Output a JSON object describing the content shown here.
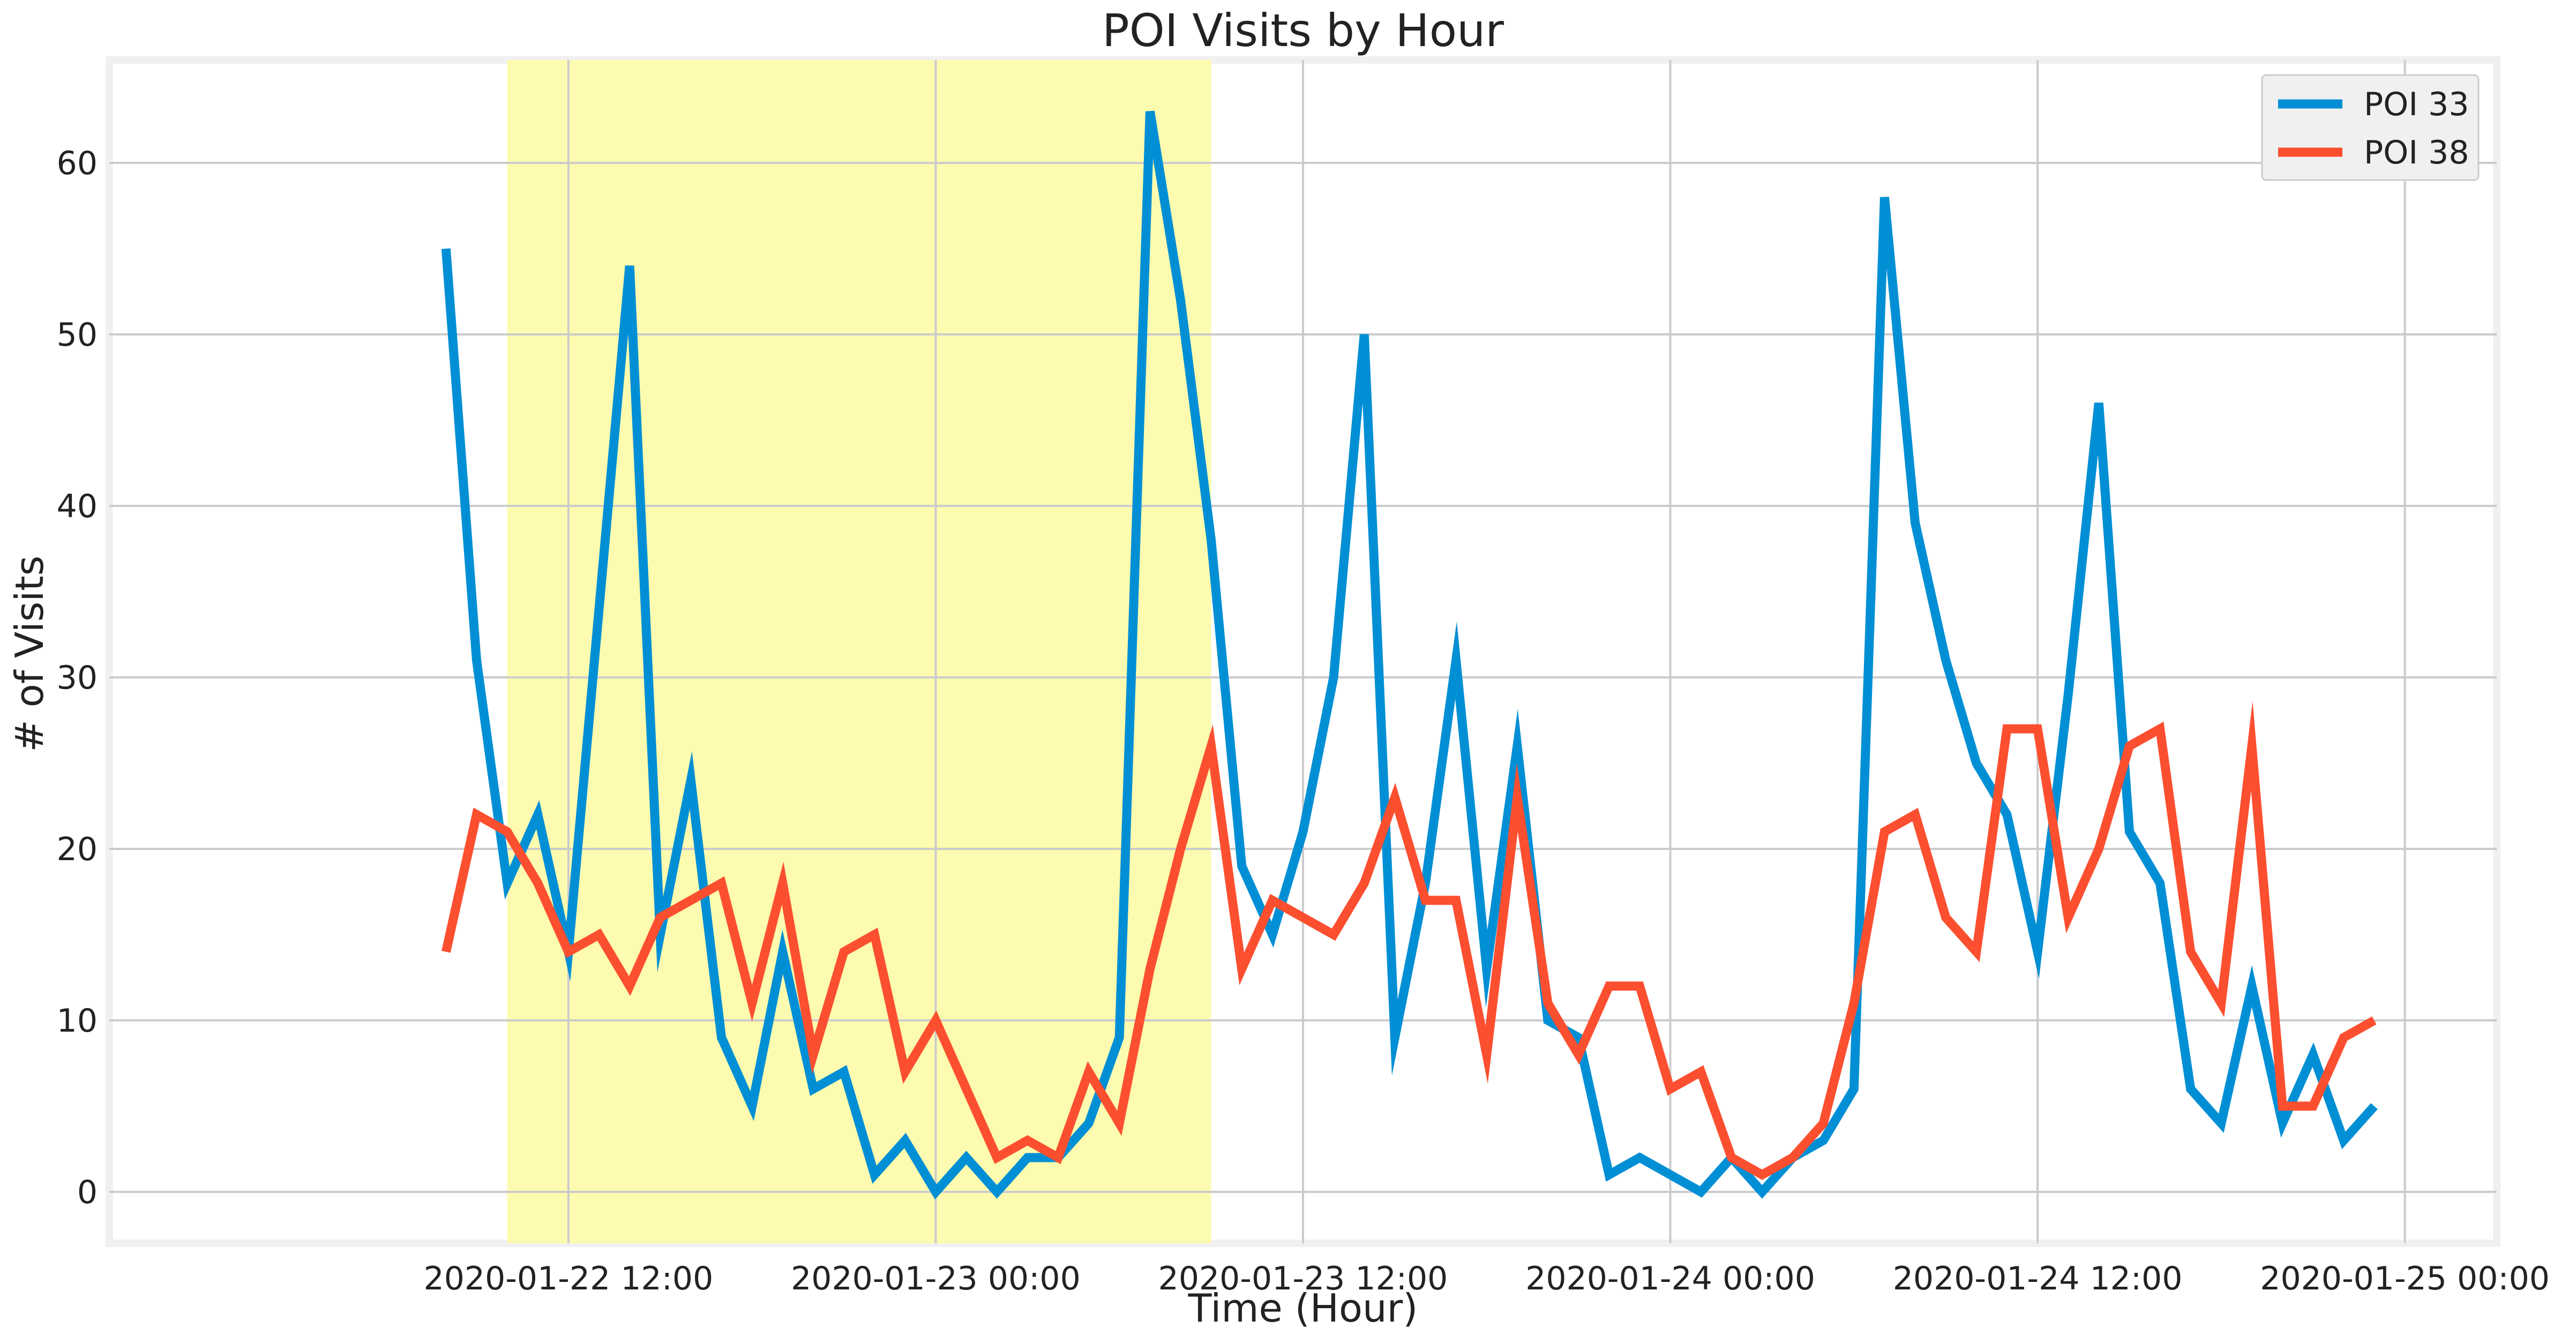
{
  "chart_data": {
    "type": "line",
    "title": "POI Visits by Hour",
    "xlabel": "Time (Hour)",
    "ylabel": "# of Visits",
    "x_unit": "hour",
    "xlim": [
      "2020-01-21 21:00",
      "2020-01-25 03:00"
    ],
    "ylim": [
      -3,
      66
    ],
    "x_ticks": [
      "2020-01-22 12:00",
      "2020-01-23 00:00",
      "2020-01-23 12:00",
      "2020-01-24 00:00",
      "2020-01-24 12:00",
      "2020-01-25 00:00"
    ],
    "y_ticks": [
      0,
      10,
      20,
      30,
      40,
      50,
      60
    ],
    "grid": true,
    "legend_position": "top-right",
    "highlight_span": {
      "from": "2020-01-22 10:00",
      "to": "2020-01-23 09:00",
      "color": "#fdfbaf"
    },
    "series": [
      {
        "name": "POI 33",
        "color": "#008fd5",
        "points": [
          [
            "2020-01-22 08:00",
            55
          ],
          [
            "2020-01-22 09:00",
            31
          ],
          [
            "2020-01-22 10:00",
            18
          ],
          [
            "2020-01-22 11:00",
            22
          ],
          [
            "2020-01-22 12:00",
            14
          ],
          [
            "2020-01-22 13:00",
            34
          ],
          [
            "2020-01-22 14:00",
            54
          ],
          [
            "2020-01-22 15:00",
            15
          ],
          [
            "2020-01-22 16:00",
            24
          ],
          [
            "2020-01-22 17:00",
            9
          ],
          [
            "2020-01-22 18:00",
            5
          ],
          [
            "2020-01-22 19:00",
            14
          ],
          [
            "2020-01-22 20:00",
            6
          ],
          [
            "2020-01-22 21:00",
            7
          ],
          [
            "2020-01-22 22:00",
            1
          ],
          [
            "2020-01-22 23:00",
            3
          ],
          [
            "2020-01-23 00:00",
            0
          ],
          [
            "2020-01-23 01:00",
            2
          ],
          [
            "2020-01-23 02:00",
            0
          ],
          [
            "2020-01-23 03:00",
            2
          ],
          [
            "2020-01-23 04:00",
            2
          ],
          [
            "2020-01-23 05:00",
            4
          ],
          [
            "2020-01-23 06:00",
            9
          ],
          [
            "2020-01-23 07:00",
            63
          ],
          [
            "2020-01-23 08:00",
            52
          ],
          [
            "2020-01-23 09:00",
            38
          ],
          [
            "2020-01-23 10:00",
            19
          ],
          [
            "2020-01-23 11:00",
            15
          ],
          [
            "2020-01-23 12:00",
            21
          ],
          [
            "2020-01-23 13:00",
            30
          ],
          [
            "2020-01-23 14:00",
            50
          ],
          [
            "2020-01-23 15:00",
            9
          ],
          [
            "2020-01-23 16:00",
            18
          ],
          [
            "2020-01-23 17:00",
            31
          ],
          [
            "2020-01-23 18:00",
            13
          ],
          [
            "2020-01-23 19:00",
            26
          ],
          [
            "2020-01-23 20:00",
            10
          ],
          [
            "2020-01-23 21:00",
            9
          ],
          [
            "2020-01-23 22:00",
            1
          ],
          [
            "2020-01-23 23:00",
            2
          ],
          [
            "2020-01-24 00:00",
            1
          ],
          [
            "2020-01-24 01:00",
            0
          ],
          [
            "2020-01-24 02:00",
            2
          ],
          [
            "2020-01-24 03:00",
            0
          ],
          [
            "2020-01-24 04:00",
            2
          ],
          [
            "2020-01-24 05:00",
            3
          ],
          [
            "2020-01-24 06:00",
            6
          ],
          [
            "2020-01-24 07:00",
            58
          ],
          [
            "2020-01-24 08:00",
            39
          ],
          [
            "2020-01-24 09:00",
            31
          ],
          [
            "2020-01-24 10:00",
            25
          ],
          [
            "2020-01-24 11:00",
            22
          ],
          [
            "2020-01-24 12:00",
            14
          ],
          [
            "2020-01-24 13:00",
            29
          ],
          [
            "2020-01-24 14:00",
            46
          ],
          [
            "2020-01-24 15:00",
            21
          ],
          [
            "2020-01-24 16:00",
            18
          ],
          [
            "2020-01-24 17:00",
            6
          ],
          [
            "2020-01-24 18:00",
            4
          ],
          [
            "2020-01-24 19:00",
            12
          ],
          [
            "2020-01-24 20:00",
            4
          ],
          [
            "2020-01-24 21:00",
            8
          ],
          [
            "2020-01-24 22:00",
            3
          ],
          [
            "2020-01-24 23:00",
            5
          ]
        ]
      },
      {
        "name": "POI 38",
        "color": "#fc4f30",
        "points": [
          [
            "2020-01-22 08:00",
            14
          ],
          [
            "2020-01-22 09:00",
            22
          ],
          [
            "2020-01-22 10:00",
            21
          ],
          [
            "2020-01-22 11:00",
            18
          ],
          [
            "2020-01-22 12:00",
            14
          ],
          [
            "2020-01-22 13:00",
            15
          ],
          [
            "2020-01-22 14:00",
            12
          ],
          [
            "2020-01-22 15:00",
            16
          ],
          [
            "2020-01-22 16:00",
            17
          ],
          [
            "2020-01-22 17:00",
            18
          ],
          [
            "2020-01-22 18:00",
            11
          ],
          [
            "2020-01-22 19:00",
            18
          ],
          [
            "2020-01-22 20:00",
            8
          ],
          [
            "2020-01-22 21:00",
            14
          ],
          [
            "2020-01-22 22:00",
            15
          ],
          [
            "2020-01-22 23:00",
            7
          ],
          [
            "2020-01-23 00:00",
            10
          ],
          [
            "2020-01-23 01:00",
            6
          ],
          [
            "2020-01-23 02:00",
            2
          ],
          [
            "2020-01-23 03:00",
            3
          ],
          [
            "2020-01-23 04:00",
            2
          ],
          [
            "2020-01-23 05:00",
            7
          ],
          [
            "2020-01-23 06:00",
            4
          ],
          [
            "2020-01-23 07:00",
            13
          ],
          [
            "2020-01-23 08:00",
            20
          ],
          [
            "2020-01-23 09:00",
            26
          ],
          [
            "2020-01-23 10:00",
            13
          ],
          [
            "2020-01-23 11:00",
            17
          ],
          [
            "2020-01-23 12:00",
            16
          ],
          [
            "2020-01-23 13:00",
            15
          ],
          [
            "2020-01-23 14:00",
            18
          ],
          [
            "2020-01-23 15:00",
            23
          ],
          [
            "2020-01-23 16:00",
            17
          ],
          [
            "2020-01-23 17:00",
            17
          ],
          [
            "2020-01-23 18:00",
            8
          ],
          [
            "2020-01-23 19:00",
            23
          ],
          [
            "2020-01-23 20:00",
            11
          ],
          [
            "2020-01-23 21:00",
            8
          ],
          [
            "2020-01-23 22:00",
            12
          ],
          [
            "2020-01-23 23:00",
            12
          ],
          [
            "2020-01-24 00:00",
            6
          ],
          [
            "2020-01-24 01:00",
            7
          ],
          [
            "2020-01-24 02:00",
            2
          ],
          [
            "2020-01-24 03:00",
            1
          ],
          [
            "2020-01-24 04:00",
            2
          ],
          [
            "2020-01-24 05:00",
            4
          ],
          [
            "2020-01-24 06:00",
            11
          ],
          [
            "2020-01-24 07:00",
            21
          ],
          [
            "2020-01-24 08:00",
            22
          ],
          [
            "2020-01-24 09:00",
            16
          ],
          [
            "2020-01-24 10:00",
            14
          ],
          [
            "2020-01-24 11:00",
            27
          ],
          [
            "2020-01-24 12:00",
            27
          ],
          [
            "2020-01-24 13:00",
            16
          ],
          [
            "2020-01-24 14:00",
            20
          ],
          [
            "2020-01-24 15:00",
            26
          ],
          [
            "2020-01-24 16:00",
            27
          ],
          [
            "2020-01-24 17:00",
            14
          ],
          [
            "2020-01-24 18:00",
            11
          ],
          [
            "2020-01-24 19:00",
            26
          ],
          [
            "2020-01-24 20:00",
            5
          ],
          [
            "2020-01-24 21:00",
            5
          ],
          [
            "2020-01-24 22:00",
            9
          ],
          [
            "2020-01-24 23:00",
            10
          ]
        ]
      }
    ]
  }
}
